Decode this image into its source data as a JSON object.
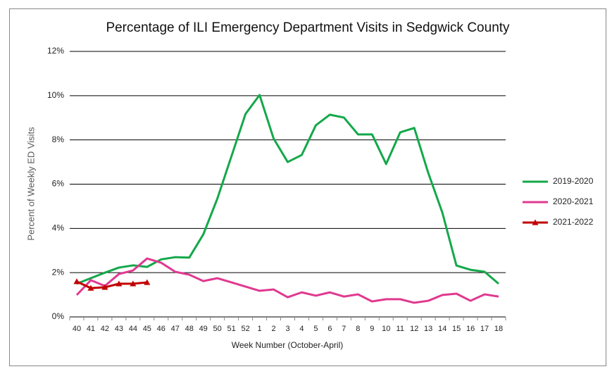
{
  "chart_data": {
    "type": "line",
    "title": "Percentage of ILI Emergency Department Visits in Sedgwick County",
    "x_label": "Week Number (October-April)",
    "y_label": "Percent of Weekly ED Visits",
    "categories": [
      "40",
      "41",
      "42",
      "43",
      "44",
      "45",
      "46",
      "47",
      "48",
      "49",
      "50",
      "51",
      "52",
      "1",
      "2",
      "3",
      "4",
      "5",
      "6",
      "7",
      "8",
      "9",
      "10",
      "11",
      "12",
      "13",
      "14",
      "15",
      "16",
      "17",
      "18"
    ],
    "series": [
      {
        "name": "2019-2020",
        "color": "#14a84a",
        "marker": "none",
        "values": [
          1.5,
          1.75,
          2.0,
          2.23,
          2.33,
          2.26,
          2.6,
          2.7,
          2.68,
          3.73,
          5.35,
          7.26,
          9.17,
          10.03,
          8.06,
          7.0,
          7.32,
          8.66,
          9.14,
          9.01,
          8.25,
          8.25,
          6.91,
          8.34,
          8.54,
          6.5,
          4.71,
          2.32,
          2.13,
          2.04,
          1.5
        ]
      },
      {
        "name": "2020-2021",
        "color": "#e0398f",
        "marker": "none",
        "values": [
          0.99,
          1.66,
          1.4,
          1.94,
          2.1,
          2.64,
          2.45,
          2.04,
          1.91,
          1.62,
          1.75,
          1.56,
          1.37,
          1.18,
          1.24,
          0.89,
          1.11,
          0.96,
          1.11,
          0.92,
          1.02,
          0.7,
          0.8,
          0.8,
          0.64,
          0.73,
          0.99,
          1.05,
          0.73,
          1.02,
          0.92
        ]
      },
      {
        "name": "2021-2022",
        "color": "#c00000",
        "marker": "triangle",
        "values": [
          1.6,
          1.3,
          1.34,
          1.5,
          1.5,
          1.56,
          null,
          null,
          null,
          null,
          null,
          null,
          null,
          null,
          null,
          null,
          null,
          null,
          null,
          null,
          null,
          null,
          null,
          null,
          null,
          null,
          null,
          null,
          null,
          null,
          null
        ]
      }
    ],
    "ylim": [
      0,
      12
    ],
    "yticks": [
      {
        "value": 0,
        "label": "0%"
      },
      {
        "value": 2,
        "label": "2%"
      },
      {
        "value": 4,
        "label": "4%"
      },
      {
        "value": 6,
        "label": "6%"
      },
      {
        "value": 8,
        "label": "8%"
      },
      {
        "value": 10,
        "label": "10%"
      },
      {
        "value": 12,
        "label": "12%"
      }
    ],
    "grid": true,
    "legend": "right"
  }
}
